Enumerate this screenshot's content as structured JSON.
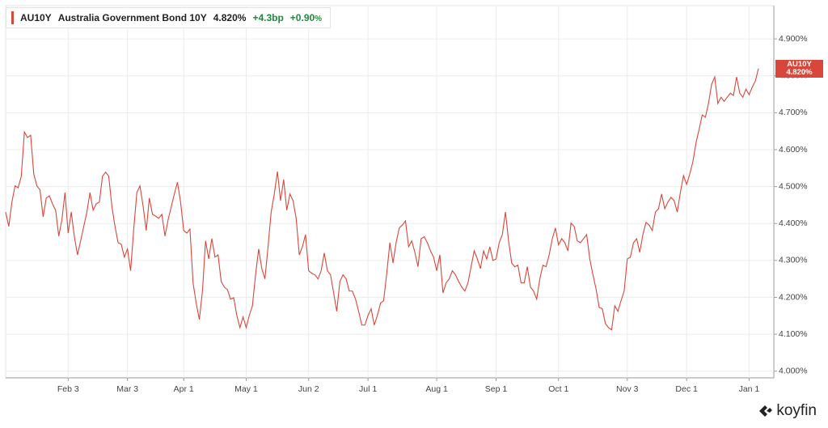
{
  "chart_data": {
    "type": "line",
    "legend": {
      "ticker": "AU10Y",
      "name": "Australia Government Bond 10Y",
      "last": "4.820%",
      "change_bp": "+4.3bp",
      "change_pct": "+0.90",
      "change_pct_unit": "%"
    },
    "brand": "koyfin",
    "series": [
      {
        "name": "AU10Y",
        "color": "#d9463b",
        "last_label": "4.820%",
        "values": [
          4.431,
          4.392,
          4.458,
          4.502,
          4.497,
          4.528,
          4.648,
          4.633,
          4.639,
          4.534,
          4.502,
          4.491,
          4.418,
          4.469,
          4.475,
          4.453,
          4.436,
          4.366,
          4.41,
          4.484,
          4.374,
          4.431,
          4.364,
          4.315,
          4.353,
          4.392,
          4.431,
          4.484,
          4.436,
          4.453,
          4.458,
          4.528,
          4.539,
          4.528,
          4.447,
          4.392,
          4.348,
          4.344,
          4.309,
          4.331,
          4.272,
          4.385,
          4.484,
          4.502,
          4.447,
          4.381,
          4.469,
          4.425,
          4.42,
          4.414,
          4.425,
          4.366,
          4.41,
          4.445,
          4.48,
          4.512,
          4.458,
          4.381,
          4.374,
          4.385,
          4.239,
          4.184,
          4.14,
          4.217,
          4.353,
          4.304,
          4.359,
          4.309,
          4.315,
          4.243,
          4.228,
          4.221,
          4.195,
          4.199,
          4.151,
          4.118,
          4.147,
          4.118,
          4.151,
          4.177,
          4.261,
          4.331,
          4.278,
          4.25,
          4.337,
          4.431,
          4.48,
          4.541,
          4.462,
          4.519,
          4.436,
          4.48,
          4.462,
          4.414,
          4.315,
          4.337,
          4.37,
          4.272,
          4.265,
          4.261,
          4.25,
          4.272,
          4.32,
          4.272,
          4.261,
          4.212,
          4.162,
          4.243,
          4.261,
          4.25,
          4.217,
          4.217,
          4.195,
          4.162,
          4.125,
          4.125,
          4.151,
          4.169,
          4.125,
          4.151,
          4.184,
          4.191,
          4.265,
          4.348,
          4.293,
          4.348,
          4.388,
          4.396,
          4.407,
          4.337,
          4.353,
          4.322,
          4.283,
          4.359,
          4.364,
          4.348,
          4.326,
          4.309,
          4.272,
          4.315,
          4.212,
          4.239,
          4.25,
          4.272,
          4.261,
          4.243,
          4.228,
          4.217,
          4.239,
          4.283,
          4.326,
          4.304,
          4.278,
          4.326,
          4.304,
          4.337,
          4.3,
          4.304,
          4.348,
          4.37,
          4.431,
          4.353,
          4.293,
          4.283,
          4.287,
          4.239,
          4.239,
          4.283,
          4.228,
          4.217,
          4.195,
          4.25,
          4.287,
          4.283,
          4.315,
          4.359,
          4.388,
          4.342,
          4.359,
          4.348,
          4.326,
          4.401,
          4.392,
          4.353,
          4.348,
          4.359,
          4.37,
          4.304,
          4.261,
          4.223,
          4.173,
          4.169,
          4.129,
          4.118,
          4.112,
          4.177,
          4.162,
          4.191,
          4.217,
          4.304,
          4.309,
          4.348,
          4.359,
          4.322,
          4.37,
          4.403,
          4.396,
          4.381,
          4.431,
          4.44,
          4.48,
          4.44,
          4.458,
          4.471,
          4.462,
          4.431,
          4.484,
          4.53,
          4.506,
          4.534,
          4.567,
          4.618,
          4.655,
          4.694,
          4.688,
          4.725,
          4.777,
          4.797,
          4.725,
          4.742,
          4.731,
          4.742,
          4.753,
          4.747,
          4.797,
          4.753,
          4.742,
          4.764,
          4.749,
          4.769,
          4.786,
          4.82
        ]
      }
    ],
    "xlim": [
      0,
      241
    ],
    "xticks": [
      {
        "value": 20,
        "label": "Feb 3"
      },
      {
        "value": 39,
        "label": "Mar 3"
      },
      {
        "value": 57,
        "label": "Apr 1"
      },
      {
        "value": 77,
        "label": "May 1"
      },
      {
        "value": 97,
        "label": "Jun 2"
      },
      {
        "value": 116,
        "label": "Jul 1"
      },
      {
        "value": 138,
        "label": "Aug 1"
      },
      {
        "value": 157,
        "label": "Sep 1"
      },
      {
        "value": 177,
        "label": "Oct 1"
      },
      {
        "value": 199,
        "label": "Nov 3"
      },
      {
        "value": 218,
        "label": "Dec 1"
      },
      {
        "value": 238,
        "label": "Jan 1"
      }
    ],
    "ylim": [
      3.982,
      4.99
    ],
    "yticks": [
      {
        "value": 4.0,
        "label": "4.000%"
      },
      {
        "value": 4.1,
        "label": "4.100%"
      },
      {
        "value": 4.2,
        "label": "4.200%"
      },
      {
        "value": 4.3,
        "label": "4.300%"
      },
      {
        "value": 4.4,
        "label": "4.400%"
      },
      {
        "value": 4.5,
        "label": "4.500%"
      },
      {
        "value": 4.6,
        "label": "4.600%"
      },
      {
        "value": 4.7,
        "label": "4.700%"
      },
      {
        "value": 4.8,
        "label": "4.800%"
      },
      {
        "value": 4.9,
        "label": "4.900%"
      }
    ],
    "grid": true
  }
}
